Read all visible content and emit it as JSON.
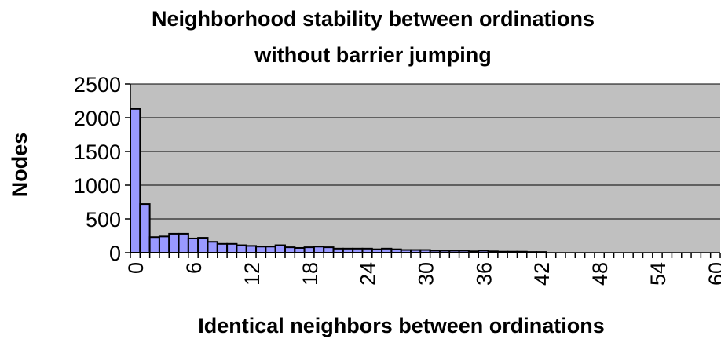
{
  "chart_data": {
    "type": "bar",
    "title_lines": [
      "Neighborhood stability between ordinations",
      "without barrier jumping"
    ],
    "xlabel": "Identical neighbors between ordinations",
    "ylabel": "Nodes",
    "ylim": [
      0,
      2500
    ],
    "yticks": [
      0,
      500,
      1000,
      1500,
      2000,
      2500
    ],
    "xticks": [
      0,
      6,
      12,
      18,
      24,
      30,
      36,
      42,
      48,
      54,
      60
    ],
    "x": [
      0,
      1,
      2,
      3,
      4,
      5,
      6,
      7,
      8,
      9,
      10,
      11,
      12,
      13,
      14,
      15,
      16,
      17,
      18,
      19,
      20,
      21,
      22,
      23,
      24,
      25,
      26,
      27,
      28,
      29,
      30,
      31,
      32,
      33,
      34,
      35,
      36,
      37,
      38,
      39,
      40,
      41,
      42,
      43,
      44,
      45,
      46,
      47,
      48,
      49,
      50,
      51,
      52,
      53,
      54,
      55,
      56,
      57,
      58,
      59,
      60
    ],
    "values": [
      2130,
      720,
      230,
      240,
      280,
      280,
      210,
      220,
      160,
      130,
      130,
      110,
      100,
      90,
      90,
      110,
      80,
      70,
      80,
      90,
      80,
      60,
      60,
      60,
      60,
      50,
      60,
      50,
      40,
      40,
      40,
      30,
      30,
      30,
      30,
      20,
      30,
      20,
      15,
      15,
      15,
      10,
      10,
      0,
      0,
      0,
      0,
      0,
      0,
      0,
      0,
      0,
      0,
      0,
      0,
      0,
      0,
      0,
      0,
      0,
      0
    ],
    "grid": true,
    "colors": {
      "bar_fill": "#9999ff",
      "bar_stroke": "#000000",
      "plot_background": "#c0c0c0",
      "gridline": "#000000"
    }
  }
}
